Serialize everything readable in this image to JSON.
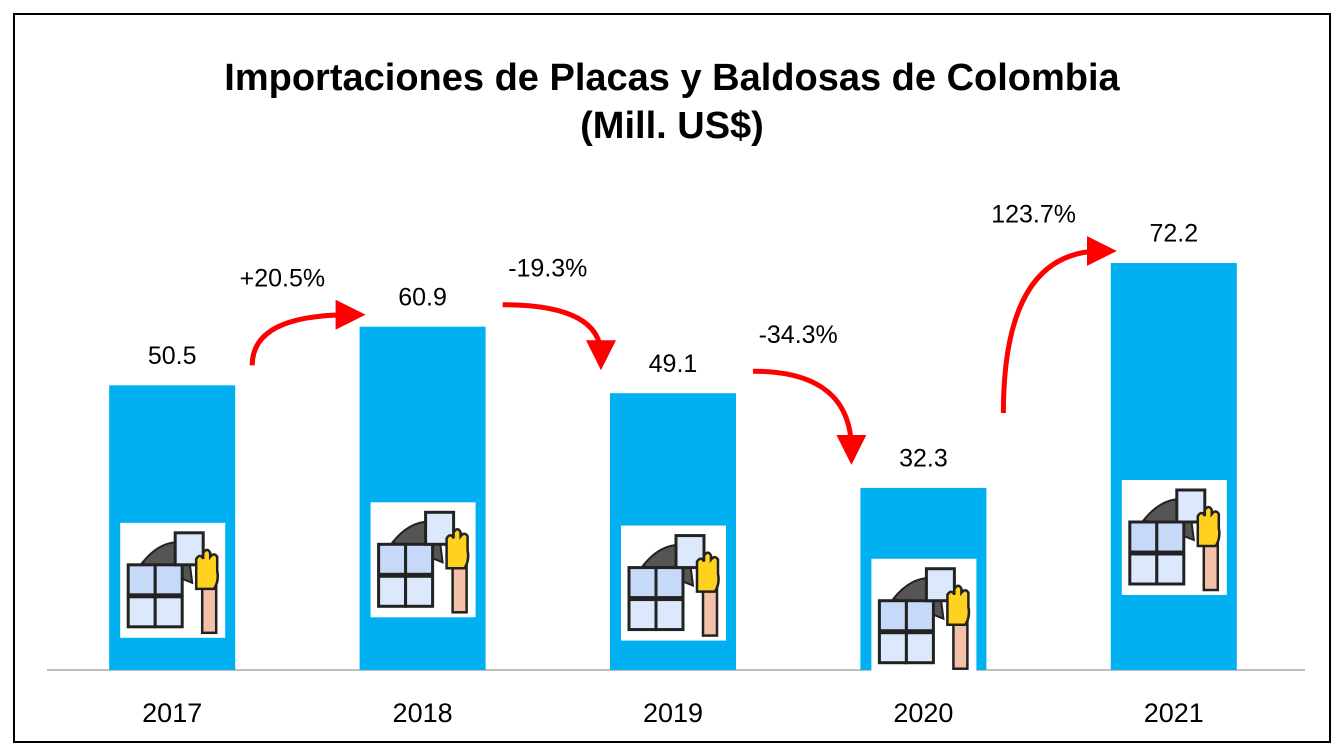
{
  "chart_data": {
    "type": "bar",
    "title": "Importaciones de Placas y Baldosas de Colombia",
    "subtitle": "(Mill. US$)",
    "categories": [
      "2017",
      "2018",
      "2019",
      "2020",
      "2021"
    ],
    "values": [
      50.5,
      60.9,
      49.1,
      32.3,
      72.2
    ],
    "color": "#00b0f0",
    "annotations": [
      "+20.5%",
      "-19.3%",
      "-34.3%",
      "123.7%"
    ],
    "arrow_color": "#ff0000"
  }
}
